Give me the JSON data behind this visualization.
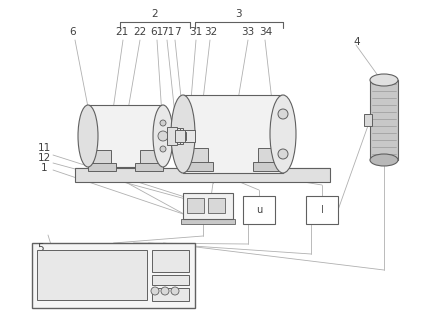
{
  "bg_color": "#ffffff",
  "line_color": "#b0b0b0",
  "dark_color": "#606060",
  "text_color": "#404040",
  "fig_w": 4.44,
  "fig_h": 3.19,
  "dpi": 100
}
